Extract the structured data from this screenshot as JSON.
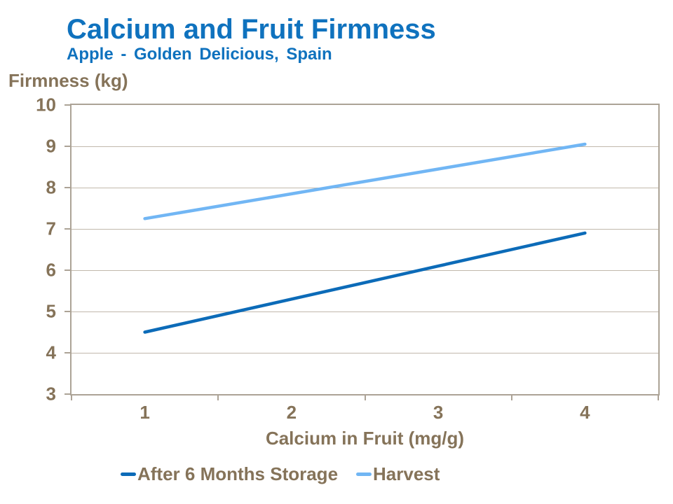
{
  "header": {
    "title": "Calcium and Fruit Firmness",
    "subtitle": "Apple - Golden Delicious, Spain"
  },
  "chart_data": {
    "type": "line",
    "title": "Calcium and Fruit Firmness",
    "subtitle": "Apple - Golden Delicious, Spain",
    "xlabel": "Calcium in Fruit (mg/g)",
    "ylabel": "Firmness (kg)",
    "x": [
      1,
      2,
      3,
      4
    ],
    "x_tick_labels": [
      "1",
      "2",
      "3",
      "4"
    ],
    "y_ticks": [
      "10",
      "9",
      "8",
      "7",
      "6",
      "5",
      "4",
      "3"
    ],
    "ylim": [
      3,
      10
    ],
    "grid": true,
    "legend_position": "bottom",
    "series": [
      {
        "name": "After 6 Months Storage",
        "color": "#0C6BB8",
        "values": [
          4.5,
          5.3,
          6.1,
          6.9
        ]
      },
      {
        "name": "Harvest",
        "color": "#71B6F4",
        "values": [
          7.25,
          7.85,
          8.45,
          9.05
        ]
      }
    ]
  },
  "colors": {
    "title_blue": "#0F72BE",
    "axis_text_brown": "#857359",
    "axis_line": "#ACA396",
    "gridline": "#C1B8AC",
    "background": "#FFFFFF"
  }
}
